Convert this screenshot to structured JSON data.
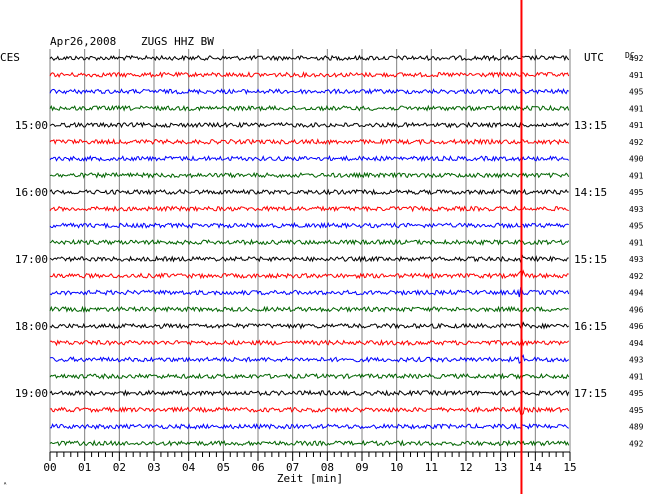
{
  "header": {
    "date": "Apr26,2008",
    "station": "ZUGS HHZ BW",
    "left_zone": "CES",
    "right_zone": "UTC",
    "dc_label": "DC"
  },
  "footer": {
    "xlabel": "Zeit [min]",
    "corner_mark": "ᴬ"
  },
  "chart_data": {
    "type": "line",
    "title": "Apr26,2008 ZUGS HHZ BW",
    "xlabel": "Zeit [min]",
    "ylabel": "",
    "xlim": [
      0,
      15
    ],
    "x_ticks": [
      "00",
      "01",
      "02",
      "03",
      "04",
      "05",
      "06",
      "07",
      "08",
      "09",
      "10",
      "11",
      "12",
      "13",
      "14",
      "15"
    ],
    "minor_ticks_per_minute": 5,
    "trace_count": 24,
    "trace_colors": [
      "#000000",
      "#ff0000",
      "#0000ff",
      "#006400"
    ],
    "left_hour_labels": [
      {
        "trace": 4,
        "label": "15:00"
      },
      {
        "trace": 8,
        "label": "16:00"
      },
      {
        "trace": 12,
        "label": "17:00"
      },
      {
        "trace": 16,
        "label": "18:00"
      },
      {
        "trace": 20,
        "label": "19:00"
      }
    ],
    "right_hour_labels": [
      {
        "trace": 4,
        "label": "13:15"
      },
      {
        "trace": 8,
        "label": "14:15"
      },
      {
        "trace": 12,
        "label": "15:15"
      },
      {
        "trace": 16,
        "label": "16:15"
      },
      {
        "trace": 20,
        "label": "17:15"
      }
    ],
    "dc_values": [
      492,
      491,
      495,
      491,
      491,
      492,
      490,
      491,
      495,
      493,
      495,
      491,
      493,
      492,
      494,
      496,
      496,
      494,
      493,
      491,
      495,
      495,
      489,
      492
    ],
    "event_marker": {
      "minute": 13.6,
      "color": "#ff0000"
    },
    "grid": true
  }
}
